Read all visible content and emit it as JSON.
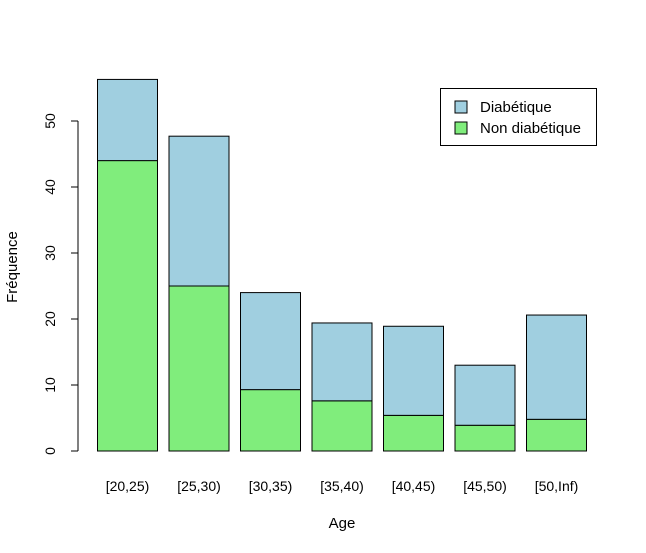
{
  "chart_data": {
    "type": "bar",
    "stacked": true,
    "title": "",
    "xlabel": "Age",
    "ylabel": "Fréquence",
    "ylim": [
      0,
      57
    ],
    "yticks": [
      0,
      10,
      20,
      30,
      40,
      50
    ],
    "categories": [
      "[20,25)",
      "[25,30)",
      "[30,35)",
      "[35,40)",
      "[40,45)",
      "[45,50)",
      "[50,Inf)"
    ],
    "series": [
      {
        "name": "Non diabétique",
        "color": "#80ED7C",
        "values": [
          44,
          25,
          9.3,
          7.6,
          5.4,
          3.9,
          4.8
        ]
      },
      {
        "name": "Diabétique",
        "color": "#A0CFE0",
        "values": [
          12.3,
          22.7,
          14.7,
          11.8,
          13.5,
          9.1,
          15.8
        ]
      }
    ],
    "legend_position": "top-right",
    "legend_order": [
      "Diabétique",
      "Non diabétique"
    ],
    "grid": false
  }
}
